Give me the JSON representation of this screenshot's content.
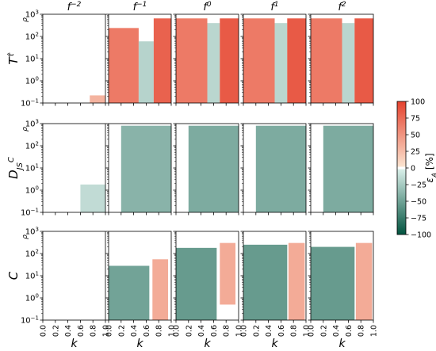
{
  "chart_data": {
    "type": "heatmap",
    "layout": {
      "rows": 3,
      "cols": 5
    },
    "column_titles": [
      {
        "base": "f",
        "exp": "−2"
      },
      {
        "base": "f",
        "exp": "−1"
      },
      {
        "base": "f",
        "exp": "0"
      },
      {
        "base": "f",
        "exp": "1"
      },
      {
        "base": "f",
        "exp": "2"
      }
    ],
    "row_labels": [
      {
        "main": "T",
        "sup": "τ̂",
        "sub": "",
        "side": "ρ"
      },
      {
        "main": "D",
        "sup": "C",
        "sub": "JS",
        "side": "ρ"
      },
      {
        "main": "C",
        "sup": "",
        "sub": "",
        "side": "ρ"
      }
    ],
    "xlabel": "k",
    "xlim": [
      0.0,
      1.0
    ],
    "xticks": [
      "0.0",
      "0.2",
      "0.4",
      "0.6",
      "0.8",
      "1.0"
    ],
    "y_scale": "log",
    "ylim": [
      0.1,
      1000
    ],
    "yticks": [
      {
        "base": "10",
        "exp": "−1"
      },
      {
        "base": "10",
        "exp": "0"
      },
      {
        "base": "10",
        "exp": "1"
      },
      {
        "base": "10",
        "exp": "2"
      },
      {
        "base": "10",
        "exp": "3"
      }
    ],
    "colorbar": {
      "label_symbol": "ε",
      "label_sub": "A",
      "label_unit": "[%]",
      "range": [
        -100,
        100
      ],
      "ticks": [
        "100",
        "75",
        "50",
        "25",
        "0",
        "−25",
        "−50",
        "−75",
        "−100"
      ],
      "colors": {
        "pos_low": "#fbe3cf",
        "pos_high": "#e5422e",
        "neg_low": "#e3f3ef",
        "neg_high": "#01533f"
      }
    },
    "panels": [
      [
        {
          "regions": [
            {
              "k": [
                0.75,
                1.0
              ],
              "rho": [
                0.1,
                0.22
              ],
              "value": 30
            }
          ]
        },
        {
          "regions": [
            {
              "k": [
                0.0,
                0.48
              ],
              "rho": [
                0.1,
                240
              ],
              "value": 65
            },
            {
              "k": [
                0.48,
                0.72
              ],
              "rho": [
                0.1,
                60
              ],
              "value": -20
            },
            {
              "k": [
                0.72,
                1.0
              ],
              "rho": [
                0.1,
                650
              ],
              "value": 80
            }
          ]
        },
        {
          "regions": [
            {
              "k": [
                0.0,
                0.5
              ],
              "rho": [
                0.1,
                650
              ],
              "value": 65
            },
            {
              "k": [
                0.5,
                0.7
              ],
              "rho": [
                0.1,
                400
              ],
              "value": -18
            },
            {
              "k": [
                0.7,
                1.0
              ],
              "rho": [
                0.1,
                650
              ],
              "value": 85
            }
          ]
        },
        {
          "regions": [
            {
              "k": [
                0.0,
                0.5
              ],
              "rho": [
                0.1,
                650
              ],
              "value": 65
            },
            {
              "k": [
                0.5,
                0.7
              ],
              "rho": [
                0.1,
                400
              ],
              "value": -18
            },
            {
              "k": [
                0.7,
                1.0
              ],
              "rho": [
                0.1,
                650
              ],
              "value": 85
            }
          ]
        },
        {
          "regions": [
            {
              "k": [
                0.0,
                0.5
              ],
              "rho": [
                0.1,
                650
              ],
              "value": 65
            },
            {
              "k": [
                0.5,
                0.7
              ],
              "rho": [
                0.1,
                400
              ],
              "value": -18
            },
            {
              "k": [
                0.7,
                1.0
              ],
              "rho": [
                0.1,
                650
              ],
              "value": 85
            }
          ]
        }
      ],
      [
        {
          "regions": [
            {
              "k": [
                0.6,
                1.0
              ],
              "rho": [
                0.1,
                1.8
              ],
              "value": -15
            }
          ]
        },
        {
          "regions": [
            {
              "k": [
                0.2,
                1.0
              ],
              "rho": [
                0.1,
                800
              ],
              "value": -40
            }
          ]
        },
        {
          "regions": [
            {
              "k": [
                0.2,
                1.0
              ],
              "rho": [
                0.1,
                800
              ],
              "value": -45
            }
          ]
        },
        {
          "regions": [
            {
              "k": [
                0.2,
                1.0
              ],
              "rho": [
                0.1,
                800
              ],
              "value": -45
            }
          ]
        },
        {
          "regions": [
            {
              "k": [
                0.2,
                1.0
              ],
              "rho": [
                0.1,
                800
              ],
              "value": -45
            }
          ]
        }
      ],
      [
        {
          "regions": []
        },
        {
          "regions": [
            {
              "k": [
                0.0,
                0.65
              ],
              "rho": [
                0.1,
                28
              ],
              "value": -50
            },
            {
              "k": [
                0.7,
                0.95
              ],
              "rho": [
                0.1,
                55
              ],
              "value": 35
            }
          ]
        },
        {
          "regions": [
            {
              "k": [
                0.0,
                0.65
              ],
              "rho": [
                0.1,
                180
              ],
              "value": -55
            },
            {
              "k": [
                0.7,
                0.95
              ],
              "rho": [
                0.5,
                300
              ],
              "value": 35
            }
          ]
        },
        {
          "regions": [
            {
              "k": [
                0.0,
                0.7
              ],
              "rho": [
                0.1,
                250
              ],
              "value": -55
            },
            {
              "k": [
                0.72,
                0.98
              ],
              "rho": [
                0.1,
                300
              ],
              "value": 35
            }
          ]
        },
        {
          "regions": [
            {
              "k": [
                0.0,
                0.7
              ],
              "rho": [
                0.1,
                200
              ],
              "value": -55
            },
            {
              "k": [
                0.72,
                0.98
              ],
              "rho": [
                0.1,
                300
              ],
              "value": 35
            }
          ]
        }
      ]
    ]
  }
}
